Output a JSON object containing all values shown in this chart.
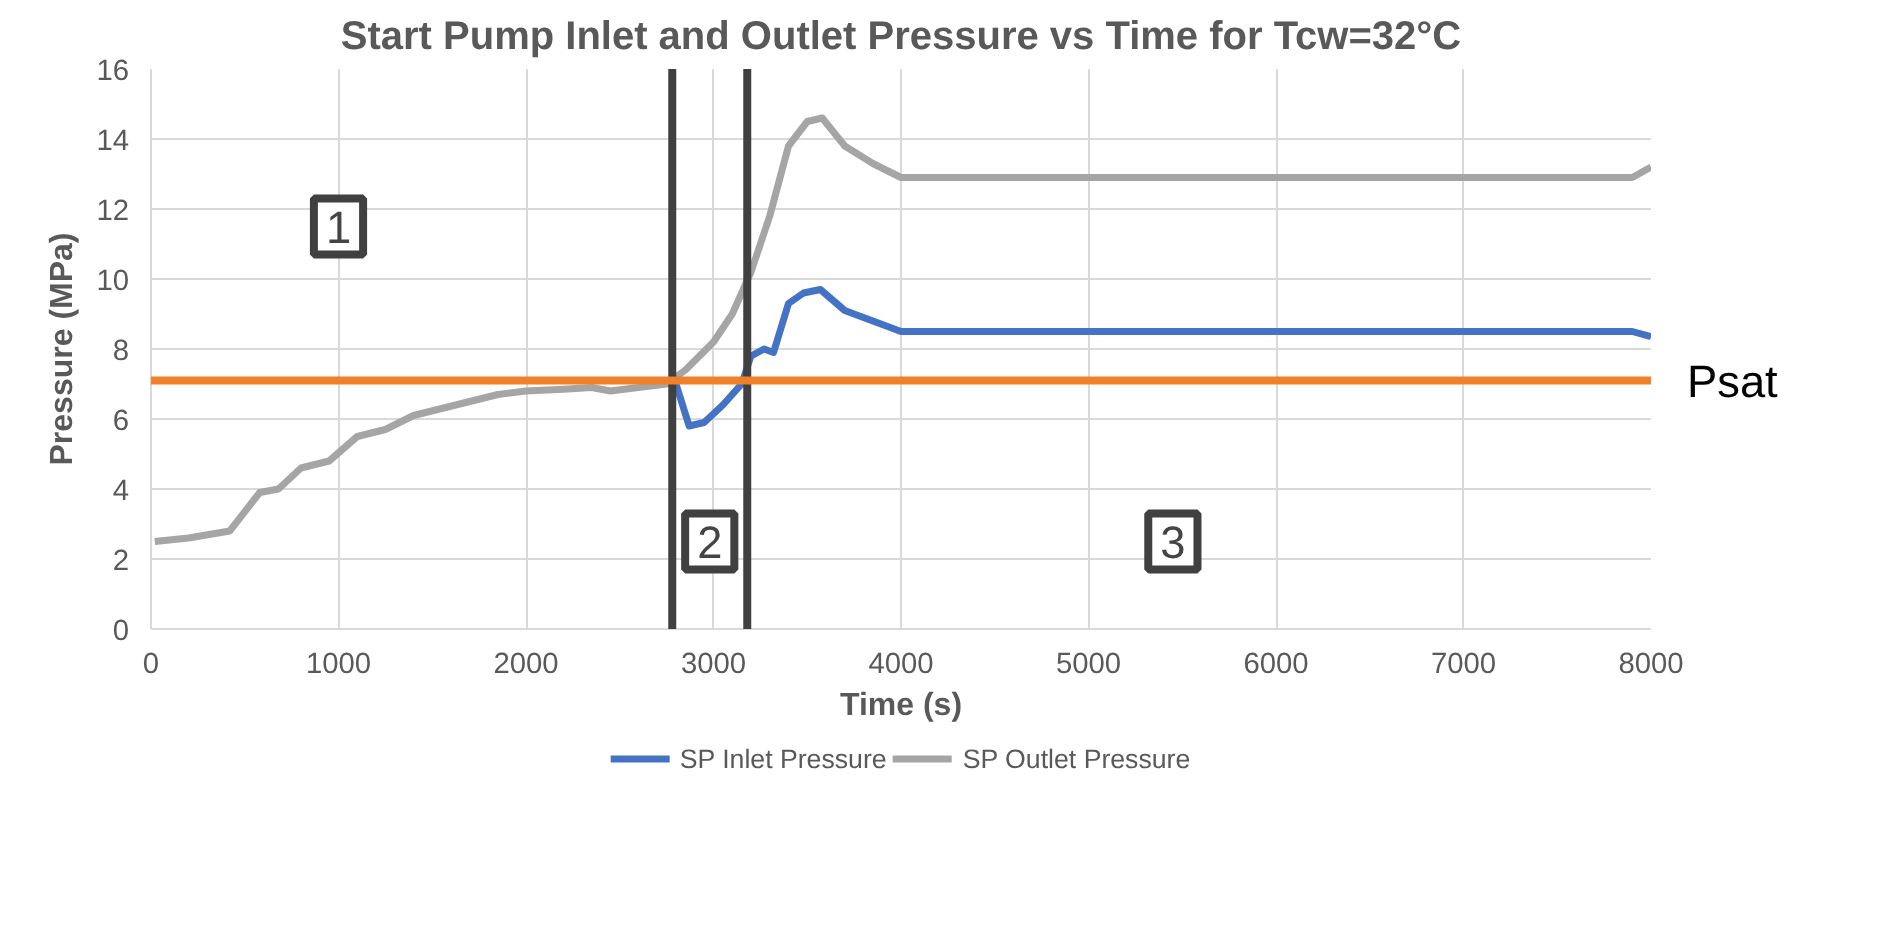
{
  "chart_data": {
    "type": "line",
    "title": "Start Pump Inlet and Outlet Pressure vs Time for Tcw=32°C",
    "xlabel": "Time (s)",
    "ylabel": "Pressure (MPa)",
    "xlim": [
      0,
      8000
    ],
    "xticks": [
      0,
      1000,
      2000,
      3000,
      4000,
      5000,
      6000,
      7000,
      8000
    ],
    "ylim": [
      0,
      16
    ],
    "yticks": [
      0,
      2,
      4,
      6,
      8,
      10,
      12,
      14,
      16
    ],
    "grid": true,
    "legend": "bottom",
    "line_style": "solid",
    "series": [
      {
        "name": "SP Inlet Pressure",
        "color": "#4472c4",
        "x": [
          2800,
          2870,
          2950,
          3050,
          3150,
          3200,
          3270,
          3320,
          3400,
          3480,
          3570,
          3700,
          3850,
          4000,
          7900,
          8000
        ],
        "values": [
          7.0,
          5.8,
          5.9,
          6.4,
          7.0,
          7.8,
          8.0,
          7.9,
          9.3,
          9.6,
          9.7,
          9.1,
          8.8,
          8.5,
          8.5,
          8.35
        ]
      },
      {
        "name": "SP Outlet Pressure",
        "color": "#a5a5a5",
        "x": [
          20,
          200,
          420,
          580,
          680,
          800,
          950,
          1100,
          1250,
          1400,
          1550,
          1700,
          1850,
          2000,
          2200,
          2350,
          2450,
          2600,
          2750,
          2850,
          3000,
          3100,
          3200,
          3300,
          3400,
          3500,
          3580,
          3700,
          3850,
          4000,
          7900,
          8000
        ],
        "values": [
          2.5,
          2.6,
          2.8,
          3.9,
          4.0,
          4.6,
          4.8,
          5.5,
          5.7,
          6.1,
          6.3,
          6.5,
          6.7,
          6.8,
          6.85,
          6.9,
          6.8,
          6.9,
          7.0,
          7.4,
          8.2,
          9.0,
          10.2,
          11.8,
          13.8,
          14.5,
          14.6,
          13.8,
          13.3,
          12.9,
          12.9,
          13.2
        ]
      }
    ],
    "ref_lines": [
      {
        "axis": "x",
        "value": 2780,
        "color": "#404040"
      },
      {
        "axis": "x",
        "value": 3180,
        "color": "#404040"
      },
      {
        "axis": "y",
        "value": 7.1,
        "label": "Psat",
        "color": "#f0812a"
      }
    ],
    "annotations": [
      {
        "text": "1",
        "x": 1000,
        "y": 11.5
      },
      {
        "text": "2",
        "x": 2980,
        "y": 2.5
      },
      {
        "text": "3",
        "x": 5450,
        "y": 2.5
      }
    ]
  }
}
